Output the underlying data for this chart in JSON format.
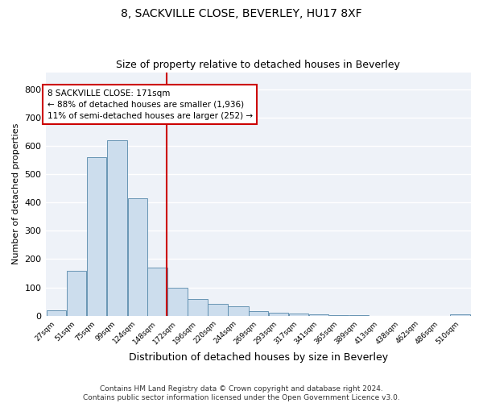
{
  "title": "8, SACKVILLE CLOSE, BEVERLEY, HU17 8XF",
  "subtitle": "Size of property relative to detached houses in Beverley",
  "xlabel": "Distribution of detached houses by size in Beverley",
  "ylabel": "Number of detached properties",
  "bar_color": "#ccdded",
  "bar_edgecolor": "#5588aa",
  "background_color": "#eef2f8",
  "grid_color": "#ffffff",
  "annotation_line1": "8 SACKVILLE CLOSE: 171sqm",
  "annotation_line2": "← 88% of detached houses are smaller (1,936)",
  "annotation_line3": "11% of semi-detached houses are larger (252) →",
  "annotation_box_color": "#cc0000",
  "vline_x": 171,
  "vline_color": "#cc0000",
  "bin_edges": [
    27,
    51,
    75,
    99,
    124,
    148,
    172,
    196,
    220,
    244,
    269,
    293,
    317,
    341,
    365,
    389,
    413,
    438,
    462,
    486,
    510
  ],
  "bar_heights": [
    20,
    160,
    560,
    620,
    415,
    170,
    100,
    58,
    42,
    32,
    15,
    10,
    7,
    5,
    3,
    1,
    0,
    0,
    0,
    0,
    5
  ],
  "ylim": [
    0,
    860
  ],
  "yticks": [
    0,
    100,
    200,
    300,
    400,
    500,
    600,
    700,
    800
  ],
  "footer_text": "Contains HM Land Registry data © Crown copyright and database right 2024.\nContains public sector information licensed under the Open Government Licence v3.0.",
  "tick_labels": [
    "27sqm",
    "51sqm",
    "75sqm",
    "99sqm",
    "124sqm",
    "148sqm",
    "172sqm",
    "196sqm",
    "220sqm",
    "244sqm",
    "269sqm",
    "293sqm",
    "317sqm",
    "341sqm",
    "365sqm",
    "389sqm",
    "413sqm",
    "438sqm",
    "462sqm",
    "486sqm",
    "510sqm"
  ]
}
